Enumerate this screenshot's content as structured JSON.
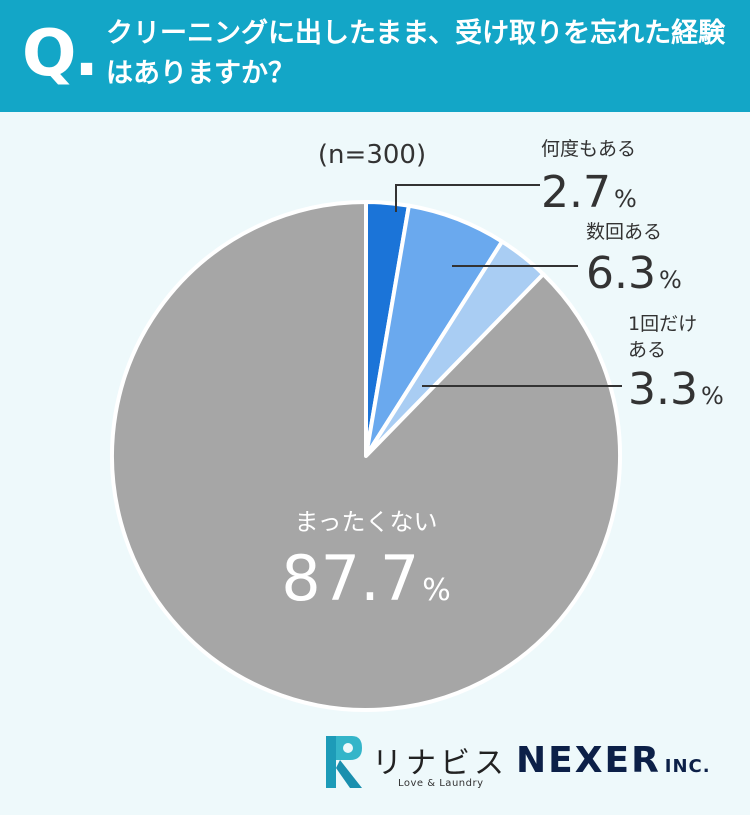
{
  "header": {
    "q_mark": "Q.",
    "question": "クリーニングに出したまま、受け取りを忘れた経験はありますか？"
  },
  "sample_label": "(n=300)",
  "colors": {
    "header_bg": "#13a6c7",
    "background": "#eef9fb",
    "slice_1": "#1b74d8",
    "slice_2": "#6aa9ee",
    "slice_3": "#a9cdf3",
    "slice_4": "#a6a6a6"
  },
  "chart_data": {
    "type": "pie",
    "categories": [
      "何度もある",
      "数回ある",
      "1回だけある",
      "まったくない"
    ],
    "values": [
      2.7,
      6.3,
      3.3,
      87.7
    ],
    "value_labels": [
      "2.7",
      "6.3",
      "3.3",
      "87.7"
    ],
    "unit": "%",
    "label_lines": [
      [
        "何度もある"
      ],
      [
        "数回ある"
      ],
      [
        "1回だけ",
        "ある"
      ],
      [
        "まったくない"
      ]
    ]
  },
  "footer": {
    "brand_name": "リナビス",
    "brand_tagline": "Love & Laundry",
    "brand_logo_icon": "rinavis-logo-icon",
    "company": "NEXER",
    "company_suffix": "INC."
  }
}
